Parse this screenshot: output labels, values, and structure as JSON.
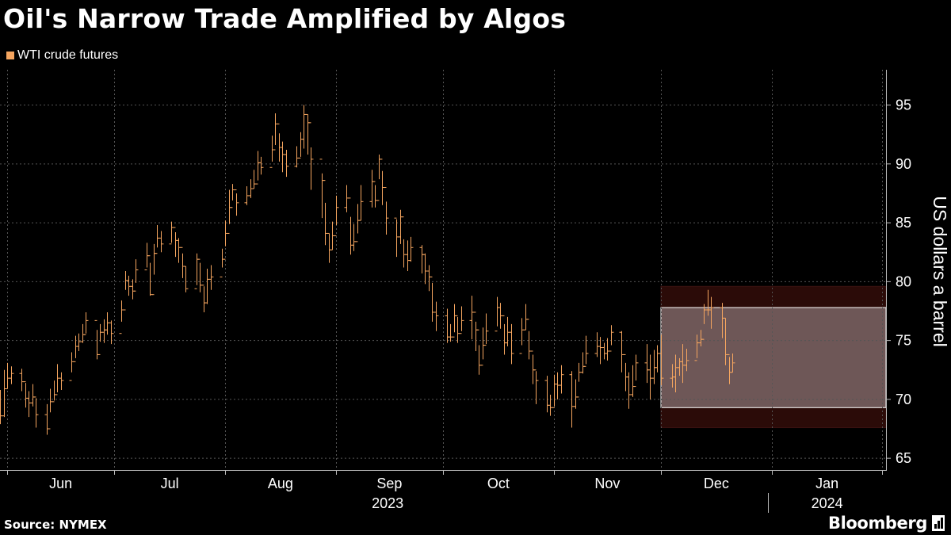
{
  "title": "Oil's Narrow Trade Amplified by Algos",
  "legend": {
    "label": "WTI crude futures",
    "color": "#f5a55f"
  },
  "source": "Source: NYMEX",
  "brand": "Bloomberg",
  "colors": {
    "background": "#000000",
    "series": "#f5a55f",
    "grid": "#555555",
    "range_outer": "#2b0b08",
    "range_inner": "#6e5757",
    "range_border": "#ffffff"
  },
  "chart_data": {
    "type": "ohlc",
    "title": "Oil's Narrow Trade Amplified by Algos",
    "ylabel": "US dollars a barrel",
    "ylim": [
      64,
      98
    ],
    "yticks": [
      65,
      70,
      75,
      80,
      85,
      90,
      95
    ],
    "grid": true,
    "legend_position": "top-left",
    "x_range": [
      "2023-05-30",
      "2024-02-02"
    ],
    "month_ticks": [
      {
        "date": "2023-06-01",
        "label": "Jun"
      },
      {
        "date": "2023-07-01",
        "label": "Jul"
      },
      {
        "date": "2023-08-01",
        "label": "Aug"
      },
      {
        "date": "2023-09-01",
        "label": "Sep"
      },
      {
        "date": "2023-10-01",
        "label": "Oct"
      },
      {
        "date": "2023-11-01",
        "label": "Nov"
      },
      {
        "date": "2023-12-01",
        "label": "Dec"
      },
      {
        "date": "2024-01-01",
        "label": "Jan"
      },
      {
        "date": "2024-02-01",
        "label": ""
      }
    ],
    "year_labels": [
      {
        "label": "2023",
        "from": "2023-06-01",
        "to": "2023-12-31"
      },
      {
        "label": "2024",
        "from": "2024-01-01",
        "to": "2024-02-01"
      }
    ],
    "year_separator": "2023-12-31",
    "range_band": {
      "start": "2023-12-01",
      "end": "2024-02-02",
      "outer": [
        67.6,
        79.6
      ],
      "inner": [
        69.3,
        77.8
      ]
    },
    "series": [
      {
        "name": "WTI crude futures",
        "close": [
          68.6,
          70.9,
          71.8,
          72.2,
          71.5,
          70.1,
          69.7,
          70.2,
          68.7,
          67.5,
          69.8,
          70.4,
          71.8,
          71.6,
          73.2,
          74.5,
          74.9,
          75.5,
          76.7,
          73.8,
          75.7,
          75.9,
          76.5,
          75.6,
          77.6,
          80.1,
          79.6,
          79.2,
          81.0,
          82.2,
          78.9,
          82.4,
          83.7,
          83.2,
          84.6,
          83.5,
          82.9,
          81.3,
          79.4,
          81.9,
          79.7,
          78.2,
          80.2,
          80.4,
          81.9,
          84.1,
          86.3,
          87.8,
          86.7,
          87.3,
          87.9,
          88.3,
          90.1,
          89.7,
          91.2,
          93.4,
          91.4,
          90.8,
          89.8,
          90.5,
          92.1,
          94.2,
          93.5,
          90.4,
          88.6,
          84.1,
          82.7,
          83.9,
          86.3,
          87.1,
          83.1,
          83.4,
          85.2,
          86.8,
          88.5,
          86.9,
          90.4,
          88.0,
          85.4,
          83.8,
          85.5,
          82.3,
          81.8,
          82.9,
          82.3,
          80.9,
          80.4,
          77.4,
          77.1,
          75.3,
          75.3,
          77.1,
          75.6,
          76.7,
          77.4,
          75.9,
          72.9,
          74.6,
          75.8,
          77.8,
          77.1,
          74.8,
          75.7,
          73.9,
          75.9,
          76.8,
          74.1,
          72.5,
          71.6,
          69.5,
          69.3,
          71.3,
          71.2,
          72.1,
          69.4,
          70.2,
          72.3,
          72.8,
          73.9,
          74.5,
          74.4,
          73.9,
          74.1,
          75.7,
          73.8,
          71.9,
          70.4,
          71.1,
          73.1,
          72.5,
          71.8,
          72.7,
          73.9,
          71.8,
          71.9,
          72.7,
          73.2,
          72.9,
          73.3,
          74.8,
          75.1,
          77.6,
          77.6,
          77.8,
          76.9,
          73.8,
          72.3,
          73.1
        ],
        "high": [
          70.8,
          72.5,
          73.1,
          72.8,
          72.6,
          71.4,
          70.7,
          71.3,
          70.1,
          69.6,
          70.9,
          71.6,
          73.0,
          72.3,
          74.0,
          75.4,
          75.6,
          76.4,
          77.4,
          75.9,
          76.4,
          76.8,
          77.4,
          76.7,
          78.4,
          80.9,
          80.5,
          80.2,
          81.9,
          83.3,
          81.6,
          83.2,
          84.8,
          84.3,
          85.1,
          84.2,
          83.7,
          82.4,
          81.3,
          82.4,
          81.6,
          79.6,
          81.1,
          81.4,
          82.8,
          85.2,
          87.8,
          88.3,
          87.5,
          88.1,
          88.7,
          89.5,
          91.1,
          90.6,
          92.4,
          94.3,
          92.6,
          91.9,
          91.2,
          91.5,
          92.7,
          95.0,
          94.2,
          91.4,
          89.2,
          86.7,
          84.1,
          85.1,
          87.3,
          88.2,
          85.5,
          84.9,
          86.6,
          88.2,
          89.5,
          88.2,
          90.8,
          89.4,
          86.8,
          85.3,
          86.1,
          83.6,
          83.5,
          83.8,
          83.1,
          82.4,
          81.4,
          79.9,
          78.3,
          77.7,
          76.4,
          78.1,
          77.0,
          77.9,
          78.8,
          76.6,
          74.6,
          76.1,
          77.3,
          78.7,
          78.2,
          76.4,
          77.0,
          76.4,
          76.9,
          78.1,
          75.8,
          73.8,
          72.4,
          72.0,
          70.4,
          72.1,
          72.3,
          72.9,
          72.4,
          71.7,
          73.1,
          74.0,
          75.4,
          75.7,
          75.3,
          74.8,
          75.2,
          76.3,
          75.8,
          73.1,
          72.3,
          72.9,
          73.8,
          74.7,
          73.8,
          74.2,
          74.6,
          75.5,
          73.0,
          73.8,
          73.5,
          74.7,
          74.3,
          75.5,
          75.9,
          78.1,
          79.3,
          78.7,
          78.2,
          76.9,
          73.6,
          73.9
        ],
        "low": [
          67.9,
          68.5,
          70.9,
          71.3,
          70.7,
          69.3,
          68.5,
          69.4,
          67.6,
          67.0,
          68.9,
          69.9,
          70.6,
          70.8,
          72.3,
          73.5,
          74.1,
          74.8,
          75.6,
          73.4,
          74.9,
          74.8,
          75.5,
          74.7,
          76.6,
          79.3,
          78.8,
          78.5,
          79.9,
          81.2,
          78.8,
          80.6,
          82.9,
          82.5,
          83.3,
          82.1,
          81.6,
          80.3,
          79.1,
          79.7,
          79.1,
          77.4,
          78.1,
          79.3,
          81.2,
          83.0,
          84.9,
          86.9,
          85.6,
          86.5,
          87.1,
          87.9,
          88.6,
          89.1,
          90.2,
          91.6,
          90.2,
          89.3,
          88.9,
          89.7,
          90.6,
          91.3,
          90.8,
          87.8,
          85.4,
          83.1,
          81.6,
          82.7,
          84.8,
          85.9,
          82.3,
          82.6,
          84.1,
          85.2,
          86.3,
          86.3,
          88.7,
          86.5,
          84.0,
          82.1,
          83.2,
          81.2,
          80.9,
          81.7,
          80.7,
          79.8,
          79.2,
          76.6,
          75.8,
          74.8,
          74.9,
          75.7,
          74.8,
          75.8,
          75.1,
          74.1,
          72.1,
          73.4,
          74.7,
          76.2,
          76.0,
          73.8,
          74.5,
          73.0,
          74.6,
          75.9,
          73.4,
          71.3,
          69.6,
          68.9,
          68.6,
          69.4,
          70.0,
          70.5,
          67.6,
          69.2,
          71.5,
          72.2,
          73.0,
          73.6,
          73.0,
          73.4,
          73.3,
          74.6,
          72.3,
          70.7,
          69.2,
          70.2,
          71.6,
          71.4,
          70.0,
          71.3,
          72.3,
          71.2,
          71.0,
          70.6,
          72.0,
          71.4,
          72.4,
          73.5,
          74.5,
          76.4,
          77.1,
          76.0,
          75.2,
          72.9,
          71.3,
          72.3
        ]
      }
    ]
  }
}
